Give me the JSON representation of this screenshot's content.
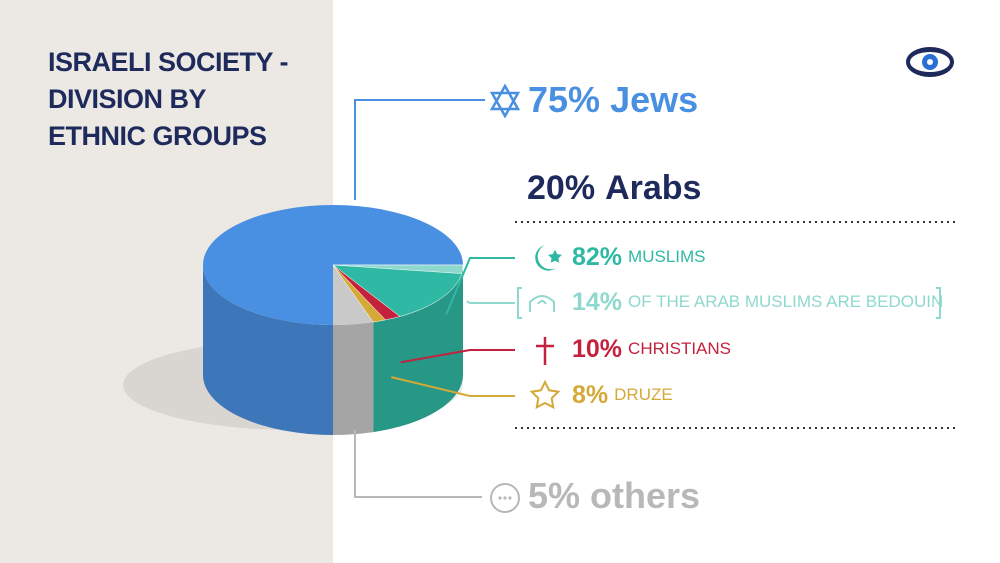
{
  "chart_data": {
    "type": "pie",
    "title": "ISRAELI SOCIETY - DIVISION BY ETHNIC GROUPS",
    "categories": [
      "Jews",
      "Arabs",
      "others"
    ],
    "values": [
      75,
      20,
      5
    ],
    "value_labels": [
      "75%",
      "20%",
      "5%"
    ],
    "colors": [
      "#4a90e2",
      "#1f2a5c",
      "#b8b8b8"
    ],
    "subgroups": {
      "categories": [
        "MUSLIMS",
        "OF THE ARAB MUSLIMS ARE BEDOUIN",
        "CHRISTIANS",
        "DRUZE"
      ],
      "values": [
        82,
        14,
        10,
        8
      ],
      "value_labels": [
        "82%",
        "14%",
        "10%",
        "8%"
      ],
      "colors": [
        "#2fb8a3",
        "#8fd8cd",
        "#c4213c",
        "#d4a937"
      ]
    }
  }
}
